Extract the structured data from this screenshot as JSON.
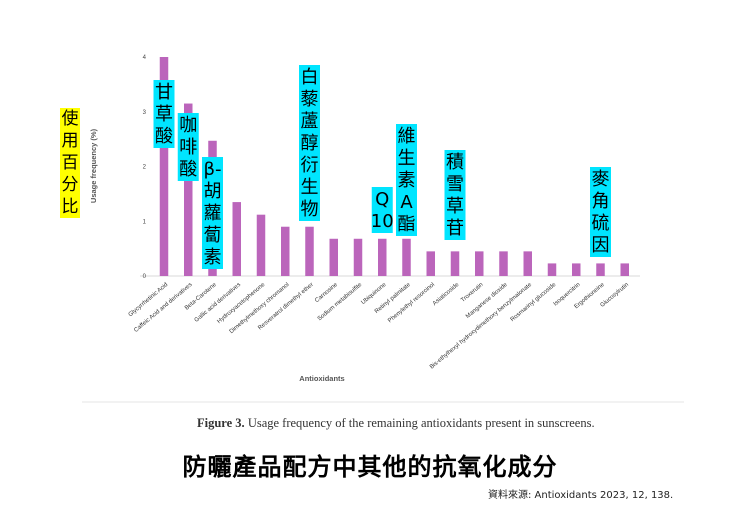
{
  "chart_data": {
    "type": "bar",
    "ylabel": "Usage frequency (%)",
    "xlabel": "Antioxidants",
    "ylim": [
      0,
      4
    ],
    "yticks": [
      0,
      1,
      2,
      3,
      4
    ],
    "bar_color": "#bb65bb",
    "categories": [
      "Glycyrrhetinic Acid",
      "Caffeic Acid and derivatives",
      "Beta-Carotene",
      "Gallic acid derivatives",
      "Hydroxyacetophenone",
      "Dimethylmethoxy chromanol",
      "Resveratrol dimethyl ether",
      "Carnosine",
      "Sodium metabisulfite",
      "Ubiquinone",
      "Retinyl palmitate",
      "Phenylethyl resorcinol",
      "Asiaticoside",
      "Troxerutin",
      "Manganese dioxide",
      "Bis-ethylhexyl hydroxydimethoxy benzylmalonate",
      "Rosmarinyl glucoside",
      "Isoquercitrin",
      "Ergothioneine",
      "Glucosylrutin"
    ],
    "values": [
      4.0,
      3.15,
      2.47,
      1.35,
      1.12,
      0.9,
      0.9,
      0.68,
      0.68,
      0.68,
      0.68,
      0.45,
      0.45,
      0.45,
      0.45,
      0.45,
      0.23,
      0.23,
      0.23,
      0.23
    ]
  },
  "annotations": [
    {
      "index": 0,
      "text": "甘草酸"
    },
    {
      "index": 1,
      "text": "咖啡酸"
    },
    {
      "index": 2,
      "text": "β-胡蘿蔔素"
    },
    {
      "index": 6,
      "text": "白藜蘆醇衍生物"
    },
    {
      "index": 9,
      "text": "Q10"
    },
    {
      "index": 10,
      "text": "維生素A酯"
    },
    {
      "index": 12,
      "text": "積雪草苷"
    },
    {
      "index": 18,
      "text": "麥角硫因"
    }
  ],
  "annotation_color": "#00e5ff",
  "ylabel_zh": "使用百分比",
  "ylabel_zh_color": "#ffff00",
  "caption_prefix": "Figure 3.",
  "caption_text": " Usage frequency of the remaining antioxidants present in sunscreens.",
  "zh_title": "防曬產品配方中其他的抗氧化成分",
  "source": "資料來源: Antioxidants 2023, 12, 138."
}
